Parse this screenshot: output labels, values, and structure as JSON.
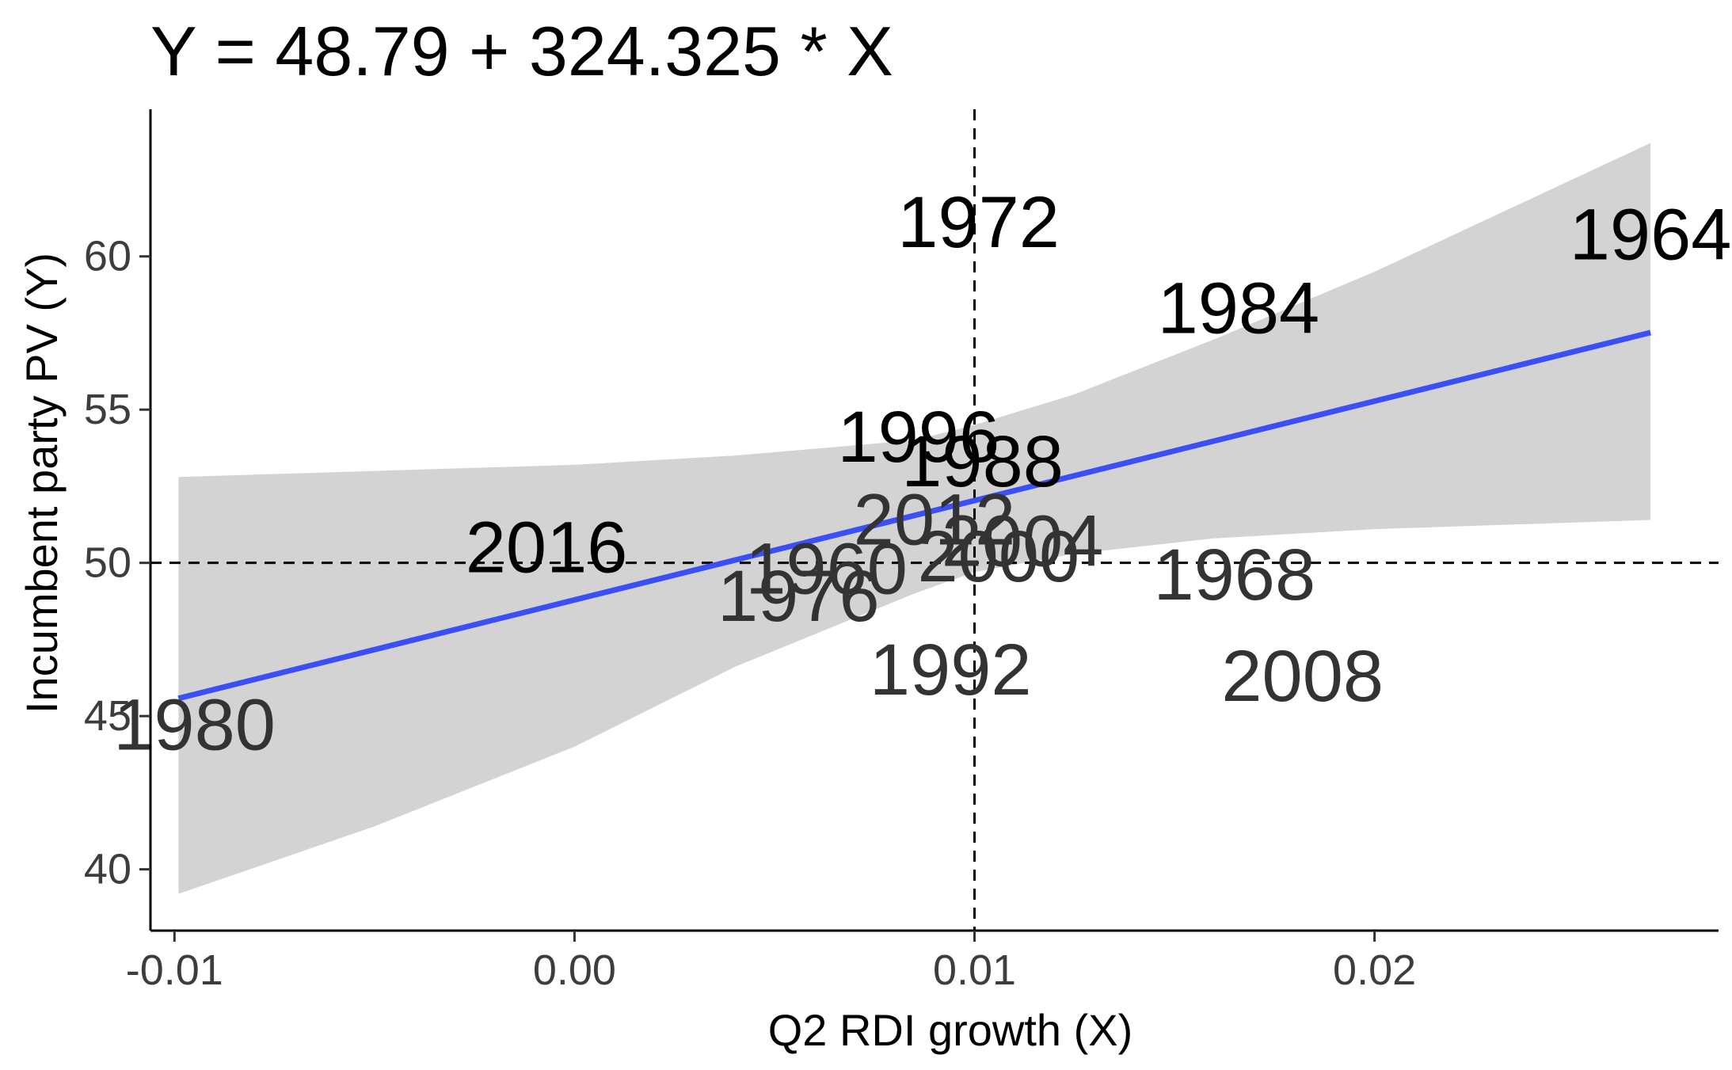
{
  "chart_data": {
    "type": "scatter",
    "title": "Y = 48.79 + 324.325 * X",
    "xlabel": "Q2 RDI growth (X)",
    "ylabel": "Incumbent party PV (Y)",
    "xlim": [
      -0.0106,
      0.0286
    ],
    "ylim": [
      38.0,
      64.8
    ],
    "x_ticks": [
      -0.01,
      0.0,
      0.01,
      0.02
    ],
    "x_tick_labels": [
      "-0.01",
      "0.00",
      "0.01",
      "0.02"
    ],
    "y_ticks": [
      40,
      45,
      50,
      55,
      60
    ],
    "y_tick_labels": [
      "40",
      "45",
      "50",
      "55",
      "60"
    ],
    "grid": false,
    "reference_lines": {
      "x": 0.01,
      "y": 50
    },
    "fit": {
      "intercept": 48.79,
      "slope": 324.325,
      "x_range": [
        -0.0099,
        0.0269
      ],
      "ci_lower": [
        [
          -0.0099,
          39.2
        ],
        [
          -0.005,
          41.4
        ],
        [
          0.0,
          44.0
        ],
        [
          0.004,
          46.6
        ],
        [
          0.0085,
          49.0
        ],
        [
          0.01,
          49.7
        ],
        [
          0.0125,
          50.3
        ],
        [
          0.016,
          50.8
        ],
        [
          0.02,
          51.1
        ],
        [
          0.0269,
          51.4
        ]
      ],
      "ci_upper": [
        [
          -0.0099,
          52.8
        ],
        [
          -0.005,
          53.0
        ],
        [
          0.0,
          53.2
        ],
        [
          0.004,
          53.5
        ],
        [
          0.0085,
          54.0
        ],
        [
          0.01,
          54.5
        ],
        [
          0.0125,
          55.5
        ],
        [
          0.016,
          57.3
        ],
        [
          0.02,
          59.5
        ],
        [
          0.0269,
          63.7
        ]
      ],
      "line_color": "#3a4ff5",
      "band_color": "#d3d3d3"
    },
    "points": [
      {
        "label": "1964",
        "x": 0.0269,
        "y": 60.7
      },
      {
        "label": "1972",
        "x": 0.0101,
        "y": 61.1
      },
      {
        "label": "1984",
        "x": 0.0166,
        "y": 58.3
      },
      {
        "label": "1996",
        "x": 0.0086,
        "y": 54.1
      },
      {
        "label": "1988",
        "x": 0.0102,
        "y": 53.3
      },
      {
        "label": "2012",
        "x": 0.009,
        "y": 51.4
      },
      {
        "label": "2004",
        "x": 0.0112,
        "y": 50.7
      },
      {
        "label": "2016",
        "x": -0.0007,
        "y": 50.5
      },
      {
        "label": "1960",
        "x": 0.0063,
        "y": 49.8
      },
      {
        "label": "2000",
        "x": 0.0106,
        "y": 50.2
      },
      {
        "label": "1968",
        "x": 0.0165,
        "y": 49.6
      },
      {
        "label": "1976",
        "x": 0.0056,
        "y": 48.9
      },
      {
        "label": "1992",
        "x": 0.0094,
        "y": 46.5
      },
      {
        "label": "2008",
        "x": 0.0182,
        "y": 46.3
      },
      {
        "label": "1980",
        "x": -0.0095,
        "y": 44.7
      }
    ]
  }
}
